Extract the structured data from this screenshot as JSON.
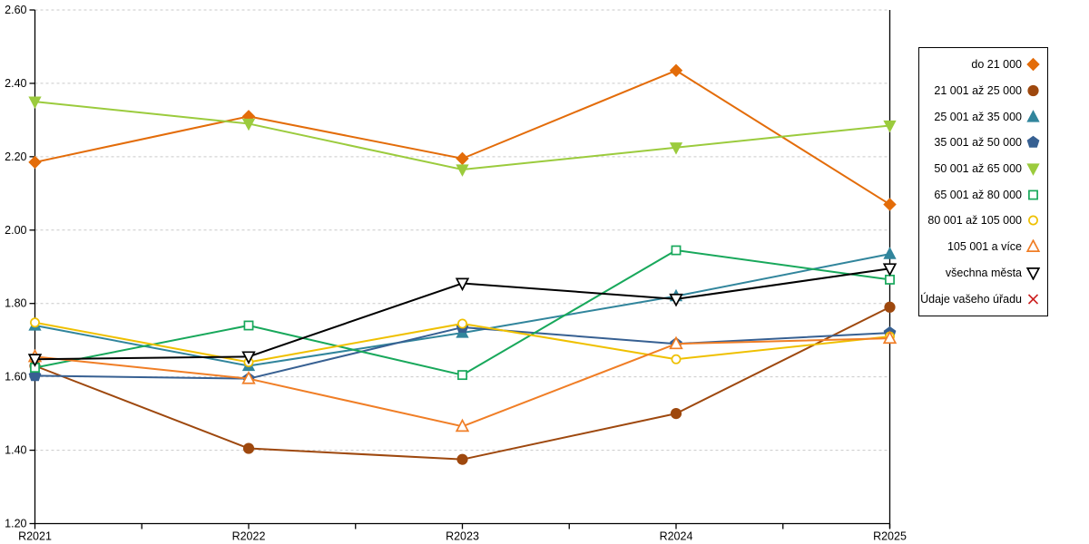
{
  "chart_data": {
    "type": "line",
    "categories": [
      "R2021",
      "R2022",
      "R2023",
      "R2024",
      "R2025"
    ],
    "ylim": [
      1.2,
      2.6
    ],
    "ytick_step": 0.2,
    "ytick_labels": [
      "1.20",
      "1.40",
      "1.60",
      "1.80",
      "2.00",
      "2.20",
      "2.40",
      "2.60"
    ],
    "grid": "horizontal-dashed",
    "gridline_color": "#c9c9c9",
    "axis_color": "#000000",
    "legend_position": "right",
    "title": "",
    "xlabel": "",
    "ylabel": "",
    "series": [
      {
        "name": "do 21 000",
        "color": "#E36C09",
        "marker": "diamond",
        "open": false,
        "values": [
          2.185,
          2.31,
          2.195,
          2.435,
          2.07
        ]
      },
      {
        "name": "21 001 až 25 000",
        "color": "#9E480E",
        "marker": "circle",
        "open": false,
        "values": [
          1.63,
          1.405,
          1.375,
          1.5,
          1.79
        ]
      },
      {
        "name": "25 001 až 35 000",
        "color": "#31859C",
        "marker": "triangle-up",
        "open": false,
        "values": [
          1.74,
          1.63,
          1.72,
          1.82,
          1.935
        ]
      },
      {
        "name": "35 001 až 50 000",
        "color": "#376092",
        "marker": "pentagon",
        "open": false,
        "values": [
          1.603,
          1.595,
          1.735,
          1.69,
          1.72
        ]
      },
      {
        "name": "50 001 až 65 000",
        "color": "#9BCB3D",
        "marker": "triangle-down",
        "open": false,
        "values": [
          2.35,
          2.29,
          2.165,
          2.225,
          2.285
        ]
      },
      {
        "name": "65 001 až 80 000",
        "color": "#18A85B",
        "marker": "square",
        "open": true,
        "values": [
          1.625,
          1.74,
          1.605,
          1.945,
          1.865
        ]
      },
      {
        "name": "80 001 až 105 000",
        "color": "#EFC000",
        "marker": "circle",
        "open": true,
        "values": [
          1.748,
          1.64,
          1.745,
          1.648,
          1.71
        ]
      },
      {
        "name": "105 001 a více",
        "color": "#F07E26",
        "marker": "triangle-up",
        "open": true,
        "values": [
          1.655,
          1.595,
          1.465,
          1.69,
          1.705
        ]
      },
      {
        "name": "všechna města",
        "color": "#000000",
        "marker": "triangle-down",
        "open": true,
        "values": [
          1.648,
          1.655,
          1.855,
          1.812,
          1.895
        ]
      },
      {
        "name": "Údaje vašeho úřadu",
        "color": "#CC2020",
        "marker": "x",
        "open": true,
        "values": []
      }
    ]
  }
}
